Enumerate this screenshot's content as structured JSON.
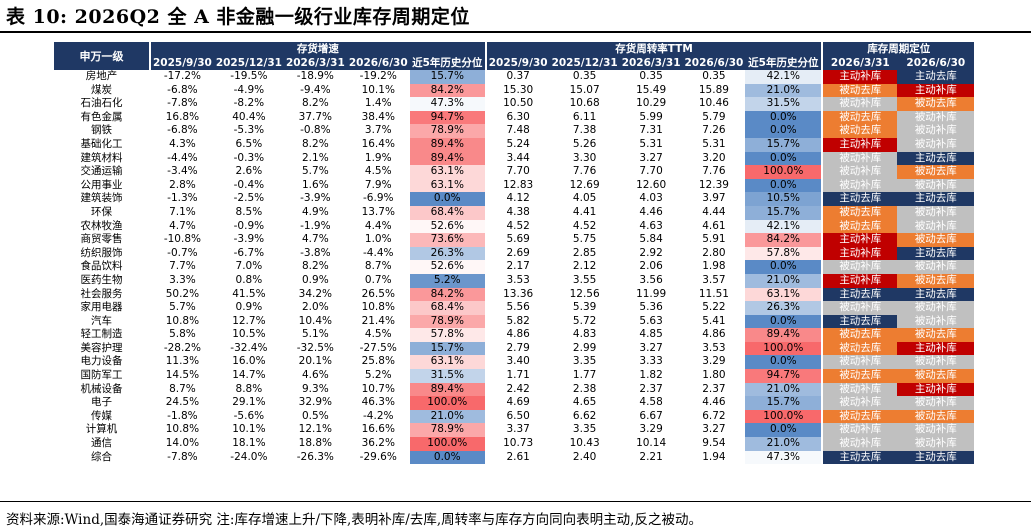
{
  "title": "表 10:  2026Q2 全 A 非金融一级行业库存周期定位",
  "note": "资料来源:Wind,国泰海通证券研究   注:库存增速上升/下降,表明补库/去库,周转率与库存方向同向表明主动,反之被动。",
  "header": {
    "name_col": "申万一级",
    "group1": "存货增速",
    "group2": "存货周转率TTM",
    "group3": "库存周期定位",
    "group1_cols": [
      "2025/9/30",
      "2025/12/31",
      "2026/3/31",
      "2026/6/30",
      "近5年历史分位"
    ],
    "group2_cols": [
      "2025/9/30",
      "2025/12/31",
      "2026/3/31",
      "2026/6/30",
      "近5年历史分位"
    ],
    "group3_cols": [
      "2026/3/31",
      "2026/6/30"
    ]
  },
  "colors": {
    "header_bg": "#1f3864",
    "主动补库": "#c00000",
    "被动去库": "#ed7d31",
    "主动去库": "#1f3864",
    "被动补库": "#c0c0c0"
  },
  "rows": [
    [
      "房地产",
      "-17.2%",
      "-19.5%",
      "-18.9%",
      "-19.2%",
      "15.7%",
      "0.37",
      "0.35",
      "0.35",
      "0.35",
      "42.1%",
      "主动补库",
      "主动去库"
    ],
    [
      "煤炭",
      "-6.8%",
      "-4.9%",
      "-9.4%",
      "10.1%",
      "84.2%",
      "15.30",
      "15.07",
      "15.49",
      "15.89",
      "21.0%",
      "被动去库",
      "主动补库"
    ],
    [
      "石油石化",
      "-7.8%",
      "-8.2%",
      "8.2%",
      "1.4%",
      "47.3%",
      "10.50",
      "10.68",
      "10.29",
      "10.46",
      "31.5%",
      "被动补库",
      "被动去库"
    ],
    [
      "有色金属",
      "16.8%",
      "40.4%",
      "37.7%",
      "38.4%",
      "94.7%",
      "6.30",
      "6.11",
      "5.99",
      "5.79",
      "0.0%",
      "被动去库",
      "被动补库"
    ],
    [
      "钢铁",
      "-6.8%",
      "-5.3%",
      "-0.8%",
      "3.7%",
      "78.9%",
      "7.48",
      "7.38",
      "7.31",
      "7.26",
      "0.0%",
      "被动去库",
      "被动补库"
    ],
    [
      "基础化工",
      "4.3%",
      "6.5%",
      "8.2%",
      "16.4%",
      "89.4%",
      "5.24",
      "5.26",
      "5.31",
      "5.31",
      "15.7%",
      "主动补库",
      "被动补库"
    ],
    [
      "建筑材料",
      "-4.4%",
      "-0.3%",
      "2.1%",
      "1.9%",
      "89.4%",
      "3.44",
      "3.30",
      "3.27",
      "3.20",
      "0.0%",
      "被动补库",
      "主动去库"
    ],
    [
      "交通运输",
      "-3.4%",
      "2.6%",
      "5.7%",
      "4.5%",
      "63.1%",
      "7.70",
      "7.76",
      "7.70",
      "7.76",
      "100.0%",
      "被动补库",
      "被动去库"
    ],
    [
      "公用事业",
      "2.8%",
      "-0.4%",
      "1.6%",
      "7.9%",
      "63.1%",
      "12.83",
      "12.69",
      "12.60",
      "12.39",
      "0.0%",
      "被动补库",
      "被动补库"
    ],
    [
      "建筑装饰",
      "-1.3%",
      "-2.5%",
      "-3.9%",
      "-6.9%",
      "0.0%",
      "4.12",
      "4.05",
      "4.03",
      "3.97",
      "10.5%",
      "主动去库",
      "主动去库"
    ],
    [
      "环保",
      "7.1%",
      "8.5%",
      "4.9%",
      "13.7%",
      "68.4%",
      "4.38",
      "4.41",
      "4.46",
      "4.44",
      "15.7%",
      "被动去库",
      "被动补库"
    ],
    [
      "农林牧渔",
      "4.7%",
      "-0.9%",
      "-1.9%",
      "4.4%",
      "52.6%",
      "4.52",
      "4.52",
      "4.63",
      "4.61",
      "42.1%",
      "被动去库",
      "被动补库"
    ],
    [
      "商贸零售",
      "-10.8%",
      "-3.9%",
      "4.7%",
      "1.0%",
      "73.6%",
      "5.69",
      "5.75",
      "5.84",
      "5.91",
      "84.2%",
      "主动补库",
      "被动去库"
    ],
    [
      "纺织服饰",
      "-0.7%",
      "-6.7%",
      "-3.8%",
      "-4.4%",
      "26.3%",
      "2.69",
      "2.85",
      "2.92",
      "2.80",
      "57.8%",
      "主动补库",
      "主动去库"
    ],
    [
      "食品饮料",
      "7.7%",
      "7.0%",
      "8.2%",
      "8.7%",
      "52.6%",
      "2.17",
      "2.12",
      "2.06",
      "1.98",
      "0.0%",
      "被动补库",
      "被动补库"
    ],
    [
      "医药生物",
      "3.3%",
      "0.8%",
      "0.9%",
      "0.7%",
      "5.2%",
      "3.53",
      "3.55",
      "3.56",
      "3.57",
      "21.0%",
      "主动补库",
      "被动去库"
    ],
    [
      "社会服务",
      "50.2%",
      "41.5%",
      "34.2%",
      "26.5%",
      "84.2%",
      "13.36",
      "12.56",
      "11.99",
      "11.51",
      "63.1%",
      "主动去库",
      "主动去库"
    ],
    [
      "家用电器",
      "5.7%",
      "0.9%",
      "2.0%",
      "10.8%",
      "68.4%",
      "5.56",
      "5.39",
      "5.36",
      "5.22",
      "26.3%",
      "被动补库",
      "被动补库"
    ],
    [
      "汽车",
      "10.8%",
      "12.7%",
      "10.4%",
      "21.4%",
      "78.9%",
      "5.82",
      "5.72",
      "5.63",
      "5.41",
      "0.0%",
      "主动去库",
      "被动补库"
    ],
    [
      "轻工制造",
      "5.8%",
      "10.5%",
      "5.1%",
      "4.5%",
      "57.8%",
      "4.86",
      "4.83",
      "4.85",
      "4.86",
      "89.4%",
      "被动去库",
      "被动去库"
    ],
    [
      "美容护理",
      "-28.2%",
      "-32.4%",
      "-32.5%",
      "-27.5%",
      "15.7%",
      "2.79",
      "2.99",
      "3.27",
      "3.53",
      "100.0%",
      "被动去库",
      "主动补库"
    ],
    [
      "电力设备",
      "11.3%",
      "16.0%",
      "20.1%",
      "25.8%",
      "63.1%",
      "3.40",
      "3.35",
      "3.33",
      "3.29",
      "0.0%",
      "被动补库",
      "被动补库"
    ],
    [
      "国防军工",
      "14.5%",
      "14.7%",
      "4.6%",
      "5.2%",
      "31.5%",
      "1.71",
      "1.77",
      "1.82",
      "1.80",
      "94.7%",
      "被动去库",
      "被动去库"
    ],
    [
      "机械设备",
      "8.7%",
      "8.8%",
      "9.3%",
      "10.7%",
      "89.4%",
      "2.42",
      "2.38",
      "2.37",
      "2.37",
      "21.0%",
      "被动补库",
      "主动补库"
    ],
    [
      "电子",
      "24.5%",
      "29.1%",
      "32.9%",
      "46.3%",
      "100.0%",
      "4.69",
      "4.65",
      "4.58",
      "4.46",
      "15.7%",
      "被动补库",
      "被动补库"
    ],
    [
      "传媒",
      "-1.8%",
      "-5.6%",
      "0.5%",
      "-4.2%",
      "21.0%",
      "6.50",
      "6.62",
      "6.67",
      "6.72",
      "100.0%",
      "被动去库",
      "被动去库"
    ],
    [
      "计算机",
      "10.8%",
      "10.1%",
      "12.1%",
      "16.6%",
      "78.9%",
      "3.37",
      "3.35",
      "3.29",
      "3.27",
      "0.0%",
      "被动补库",
      "被动补库"
    ],
    [
      "通信",
      "14.0%",
      "18.1%",
      "18.8%",
      "36.2%",
      "100.0%",
      "10.73",
      "10.43",
      "10.14",
      "9.54",
      "21.0%",
      "被动补库",
      "被动补库"
    ],
    [
      "综合",
      "-7.8%",
      "-24.0%",
      "-26.3%",
      "-29.6%",
      "0.0%",
      "2.61",
      "2.40",
      "2.21",
      "1.94",
      "47.3%",
      "主动去库",
      "主动去库"
    ]
  ]
}
